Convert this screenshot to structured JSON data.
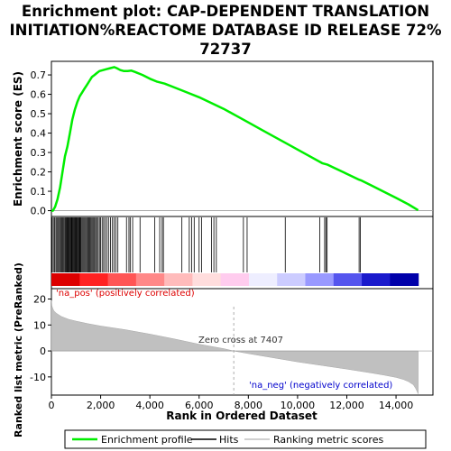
{
  "chart_data": {
    "type": "line",
    "title_lines": [
      "Enrichment plot: CAP-DEPENDENT TRANSLATION",
      "INITIATION%REACTOME DATABASE ID RELEASE 72%",
      "72737"
    ],
    "xlabel": "Rank in Ordered Dataset",
    "ylabel_top": "Enrichment score (ES)",
    "ylabel_bottom": "Ranked list metric (PreRanked)",
    "xlim": [
      0,
      15500
    ],
    "x_ticks": [
      0,
      2000,
      4000,
      6000,
      8000,
      10000,
      12000,
      14000
    ],
    "x_tick_labels": [
      "0",
      "2,000",
      "4,000",
      "6,000",
      "8,000",
      "10,000",
      "12,000",
      "14,000"
    ],
    "es_ylim": [
      -0.03,
      0.77
    ],
    "es_ticks": [
      0.0,
      0.1,
      0.2,
      0.3,
      0.4,
      0.5,
      0.6,
      0.7
    ],
    "es_tick_labels": [
      "0.0",
      "0.1",
      "0.2",
      "0.3",
      "0.4",
      "0.5",
      "0.6",
      "0.7"
    ],
    "metric_ylim": [
      -17,
      24
    ],
    "metric_ticks": [
      20,
      10,
      0,
      -10
    ],
    "metric_tick_labels": [
      "20",
      "10",
      "0",
      "-10"
    ],
    "total_genes": 14900,
    "zero_cross": 7407,
    "zero_cross_label": "Zero cross at 7407",
    "pos_label": "'na_pos' (positively correlated)",
    "neg_label": "'na_neg' (negatively correlated)",
    "series": [
      {
        "name": "Enrichment profile",
        "color": "#00ee00",
        "x": [
          0,
          60,
          150,
          250,
          350,
          450,
          550,
          650,
          750,
          850,
          950,
          1050,
          1150,
          1250,
          1350,
          1450,
          1550,
          1650,
          1750,
          1850,
          1950,
          2100,
          2250,
          2400,
          2550,
          2650,
          2800,
          2950,
          3100,
          3250,
          3400,
          3700,
          4000,
          4300,
          4600,
          5000,
          5500,
          6000,
          6500,
          7000,
          7500,
          8000,
          8500,
          9000,
          9500,
          10000,
          10500,
          11000,
          11200,
          11500,
          12000,
          12500,
          12600,
          13000,
          13500,
          14000,
          14500,
          14900
        ],
        "y": [
          0.0,
          0.0,
          0.02,
          0.06,
          0.12,
          0.2,
          0.28,
          0.33,
          0.4,
          0.47,
          0.52,
          0.56,
          0.59,
          0.61,
          0.63,
          0.65,
          0.67,
          0.69,
          0.7,
          0.71,
          0.72,
          0.725,
          0.73,
          0.735,
          0.74,
          0.735,
          0.725,
          0.72,
          0.72,
          0.722,
          0.715,
          0.7,
          0.68,
          0.665,
          0.655,
          0.635,
          0.61,
          0.585,
          0.555,
          0.525,
          0.49,
          0.455,
          0.42,
          0.385,
          0.35,
          0.315,
          0.28,
          0.245,
          0.238,
          0.22,
          0.19,
          0.16,
          0.155,
          0.13,
          0.098,
          0.066,
          0.033,
          0.002
        ]
      },
      {
        "name": "Hits",
        "color": "#000000",
        "ranks": [
          30,
          80,
          130,
          180,
          220,
          260,
          300,
          340,
          380,
          420,
          460,
          500,
          540,
          570,
          600,
          630,
          660,
          690,
          720,
          750,
          780,
          810,
          840,
          870,
          900,
          930,
          960,
          990,
          1020,
          1050,
          1080,
          1110,
          1140,
          1170,
          1200,
          1240,
          1280,
          1320,
          1360,
          1400,
          1440,
          1480,
          1520,
          1560,
          1600,
          1640,
          1680,
          1720,
          1760,
          1800,
          1850,
          1900,
          1950,
          2000,
          2060,
          2120,
          2180,
          2250,
          2320,
          2400,
          2480,
          2550,
          2620,
          2700,
          3050,
          3150,
          3200,
          3300,
          3600,
          4200,
          4400,
          4500,
          4550,
          5300,
          5600,
          5700,
          5800,
          6000,
          6100,
          6500,
          6600,
          6700,
          7800,
          7950,
          9500,
          10900,
          11100,
          11150,
          11200,
          12500,
          12550
        ]
      },
      {
        "name": "Ranking metric scores",
        "color": "#c0c0c0",
        "x": [
          0,
          20,
          50,
          100,
          200,
          400,
          700,
          1000,
          1500,
          2000,
          3000,
          4000,
          5000,
          6000,
          7000,
          7407,
          8000,
          9000,
          10000,
          11000,
          12000,
          13000,
          13500,
          14000,
          14300,
          14500,
          14700,
          14800,
          14850,
          14900
        ],
        "y": [
          19.5,
          17.5,
          16.5,
          15.5,
          14.5,
          13.3,
          12.2,
          11.5,
          10.5,
          9.6,
          8.2,
          6.5,
          4.6,
          2.6,
          0.9,
          0.0,
          -1.0,
          -2.6,
          -4.2,
          -5.6,
          -7.0,
          -8.5,
          -9.3,
          -10.2,
          -11.0,
          -11.8,
          -13.0,
          -14.5,
          -15.5,
          -16.5
        ]
      }
    ],
    "heatmap_colors": [
      "#dd0000",
      "#ff2222",
      "#ff5555",
      "#ff8888",
      "#ffbbbb",
      "#ffdddd",
      "#ffccee",
      "#eeeeff",
      "#ccccff",
      "#9999ff",
      "#5555ee",
      "#1a1acc",
      "#0000aa"
    ],
    "legend_position": "bottom"
  }
}
